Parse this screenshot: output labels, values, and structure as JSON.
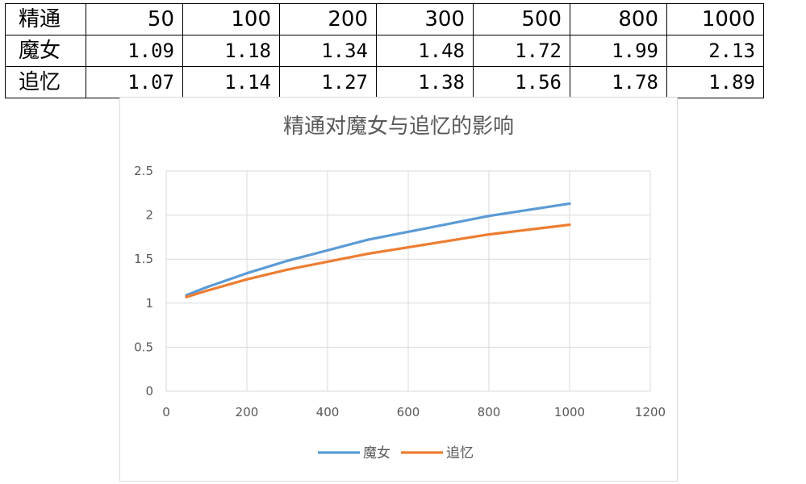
{
  "table": {
    "rows": [
      {
        "label": "精通",
        "values": [
          "50",
          "100",
          "200",
          "300",
          "500",
          "800",
          "1000"
        ]
      },
      {
        "label": "魔女",
        "values": [
          "1.09",
          "1.18",
          "1.34",
          "1.48",
          "1.72",
          "1.99",
          "2.13"
        ]
      },
      {
        "label": "追忆",
        "values": [
          "1.07",
          "1.14",
          "1.27",
          "1.38",
          "1.56",
          "1.78",
          "1.89"
        ]
      }
    ]
  },
  "chart_data": {
    "type": "line",
    "title": "精通对魔女与追忆的影响",
    "xlabel": "",
    "ylabel": "",
    "xlim": [
      0,
      1200
    ],
    "ylim": [
      0,
      2.5
    ],
    "x_ticks": [
      "0",
      "200",
      "400",
      "600",
      "800",
      "1000",
      "1200"
    ],
    "y_ticks": [
      "0",
      "0.5",
      "1",
      "1.5",
      "2",
      "2.5"
    ],
    "x": [
      50,
      100,
      200,
      300,
      500,
      800,
      1000
    ],
    "series": [
      {
        "name": "魔女",
        "color": "#5b9bd5",
        "values": [
          1.09,
          1.18,
          1.34,
          1.48,
          1.72,
          1.99,
          2.13
        ]
      },
      {
        "name": "追忆",
        "color": "#ed7d31",
        "values": [
          1.07,
          1.14,
          1.27,
          1.38,
          1.56,
          1.78,
          1.89
        ]
      }
    ],
    "grid": true,
    "legend_position": "bottom"
  }
}
